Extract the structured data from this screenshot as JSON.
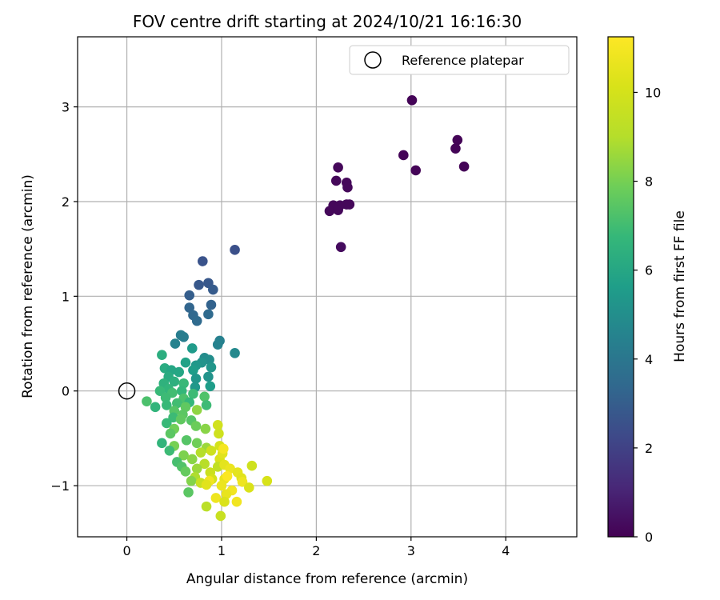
{
  "chart_data": {
    "type": "scatter",
    "title": "FOV centre drift starting at 2024/10/21 16:16:30",
    "xlabel": "Angular distance from reference (arcmin)",
    "ylabel": "Rotation from reference (arcmin)",
    "xlim": [
      -0.52,
      4.75
    ],
    "ylim": [
      -1.54,
      3.74
    ],
    "x_ticks": [
      0,
      1,
      2,
      3,
      4
    ],
    "y_ticks": [
      -1,
      0,
      1,
      2,
      3
    ],
    "x_tick_labels": [
      "0",
      "1",
      "2",
      "3",
      "4"
    ],
    "y_tick_labels": [
      "−1",
      "0",
      "1",
      "2",
      "3"
    ],
    "grid": true,
    "legend": {
      "position": "upper-right",
      "entries": [
        "Reference platepar"
      ]
    },
    "reference_point": {
      "name": "Reference platepar",
      "x": 0,
      "y": 0
    },
    "colorbar": {
      "label": "Hours from first FF file",
      "range": [
        0,
        11.25
      ],
      "ticks": [
        0,
        2,
        4,
        6,
        8,
        10
      ],
      "tick_labels": [
        "0",
        "2",
        "4",
        "6",
        "8",
        "10"
      ],
      "colormap": "viridis"
    },
    "points": [
      [
        3.01,
        3.07,
        0.1
      ],
      [
        3.49,
        2.65,
        0.1
      ],
      [
        3.47,
        2.56,
        0.1
      ],
      [
        2.92,
        2.49,
        0.1
      ],
      [
        3.56,
        2.37,
        0.1
      ],
      [
        3.05,
        2.33,
        0.1
      ],
      [
        2.23,
        2.36,
        0.2
      ],
      [
        2.21,
        2.22,
        0.2
      ],
      [
        2.32,
        2.2,
        0.2
      ],
      [
        2.33,
        2.15,
        0.2
      ],
      [
        2.18,
        1.96,
        0.2
      ],
      [
        2.25,
        1.96,
        0.2
      ],
      [
        2.32,
        1.97,
        0.2
      ],
      [
        2.35,
        1.97,
        0.2
      ],
      [
        2.14,
        1.9,
        0.2
      ],
      [
        2.23,
        1.91,
        0.2
      ],
      [
        2.26,
        1.52,
        0.3
      ],
      [
        1.14,
        1.49,
        2.5
      ],
      [
        0.8,
        1.37,
        2.6
      ],
      [
        0.86,
        1.14,
        2.8
      ],
      [
        0.76,
        1.12,
        2.8
      ],
      [
        0.91,
        1.07,
        2.9
      ],
      [
        0.66,
        1.01,
        3.0
      ],
      [
        0.89,
        0.91,
        3.2
      ],
      [
        0.66,
        0.88,
        3.3
      ],
      [
        0.7,
        0.8,
        3.4
      ],
      [
        0.86,
        0.81,
        3.5
      ],
      [
        0.74,
        0.74,
        3.5
      ],
      [
        0.57,
        0.59,
        4.3
      ],
      [
        0.6,
        0.57,
        4.3
      ],
      [
        0.98,
        0.53,
        4.4
      ],
      [
        0.51,
        0.5,
        4.5
      ],
      [
        0.96,
        0.49,
        4.5
      ],
      [
        0.69,
        0.45,
        5.5
      ],
      [
        1.14,
        0.4,
        4.8
      ],
      [
        0.37,
        0.38,
        6.3
      ],
      [
        0.82,
        0.35,
        4.9
      ],
      [
        0.87,
        0.33,
        5.0
      ],
      [
        0.79,
        0.3,
        5.2
      ],
      [
        0.89,
        0.25,
        5.3
      ],
      [
        0.73,
        0.27,
        5.4
      ],
      [
        0.62,
        0.3,
        5.8
      ],
      [
        0.4,
        0.24,
        6.2
      ],
      [
        0.47,
        0.22,
        6.0
      ],
      [
        0.7,
        0.22,
        5.6
      ],
      [
        0.55,
        0.2,
        6.0
      ],
      [
        0.86,
        0.15,
        5.2
      ],
      [
        0.73,
        0.13,
        5.3
      ],
      [
        0.44,
        0.15,
        6.2
      ],
      [
        0.5,
        0.1,
        6.4
      ],
      [
        0.39,
        0.08,
        6.5
      ],
      [
        0.6,
        0.08,
        6.8
      ],
      [
        0.88,
        0.05,
        5.6
      ],
      [
        0.72,
        0.04,
        5.4
      ],
      [
        0.44,
        0.02,
        6.6
      ],
      [
        0.58,
        0.0,
        6.7
      ],
      [
        0.35,
        0.0,
        6.8
      ],
      [
        0.48,
        -0.02,
        7.0
      ],
      [
        0.7,
        -0.03,
        6.9
      ],
      [
        0.82,
        -0.06,
        7.3
      ],
      [
        0.6,
        -0.08,
        7.2
      ],
      [
        0.41,
        -0.07,
        6.9
      ],
      [
        0.21,
        -0.11,
        7.2
      ],
      [
        0.66,
        -0.12,
        6.7
      ],
      [
        0.53,
        -0.13,
        7.0
      ],
      [
        0.42,
        -0.15,
        6.8
      ],
      [
        0.3,
        -0.17,
        6.6
      ],
      [
        0.84,
        -0.15,
        6.9
      ],
      [
        0.62,
        -0.17,
        7.6
      ],
      [
        0.74,
        -0.2,
        8.4
      ],
      [
        0.5,
        -0.21,
        7.4
      ],
      [
        0.59,
        -0.25,
        7.5
      ],
      [
        0.49,
        -0.28,
        6.9
      ],
      [
        0.68,
        -0.31,
        7.4
      ],
      [
        0.57,
        -0.3,
        7.6
      ],
      [
        0.42,
        -0.34,
        6.8
      ],
      [
        0.96,
        -0.36,
        9.9
      ],
      [
        0.73,
        -0.37,
        7.8
      ],
      [
        0.5,
        -0.4,
        7.9
      ],
      [
        0.83,
        -0.4,
        8.3
      ],
      [
        0.46,
        -0.45,
        7.5
      ],
      [
        0.97,
        -0.45,
        9.8
      ],
      [
        0.37,
        -0.55,
        6.6
      ],
      [
        0.63,
        -0.52,
        7.4
      ],
      [
        0.74,
        -0.55,
        7.9
      ],
      [
        0.5,
        -0.58,
        8.0
      ],
      [
        0.98,
        -0.58,
        10.0
      ],
      [
        0.84,
        -0.6,
        8.6
      ],
      [
        0.45,
        -0.63,
        6.9
      ],
      [
        0.89,
        -0.63,
        9.8
      ],
      [
        0.6,
        -0.68,
        8.1
      ],
      [
        0.69,
        -0.72,
        8.3
      ],
      [
        0.53,
        -0.75,
        7.1
      ],
      [
        0.98,
        -0.72,
        10.2
      ],
      [
        1.01,
        -0.66,
        10.4
      ],
      [
        0.82,
        -0.77,
        9.1
      ],
      [
        0.96,
        -0.8,
        9.4
      ],
      [
        0.74,
        -0.82,
        8.6
      ],
      [
        0.58,
        -0.8,
        7.3
      ],
      [
        1.03,
        -0.78,
        10.5
      ],
      [
        1.09,
        -0.82,
        10.7
      ],
      [
        0.62,
        -0.85,
        7.7
      ],
      [
        0.88,
        -0.86,
        9.7
      ],
      [
        1.32,
        -0.79,
        9.8
      ],
      [
        0.72,
        -0.91,
        8.9
      ],
      [
        0.9,
        -0.93,
        10.0
      ],
      [
        1.17,
        -0.86,
        10.5
      ],
      [
        0.68,
        -0.95,
        8.2
      ],
      [
        0.78,
        -0.97,
        9.6
      ],
      [
        1.03,
        -0.93,
        10.6
      ],
      [
        0.87,
        -0.95,
        10.9
      ],
      [
        1.21,
        -0.92,
        10.4
      ],
      [
        1.48,
        -0.95,
        10.1
      ],
      [
        1.0,
        -1.0,
        10.7
      ],
      [
        1.22,
        -0.96,
        10.8
      ],
      [
        0.84,
        -0.99,
        10.4
      ],
      [
        1.11,
        -1.05,
        10.9
      ],
      [
        1.29,
        -1.02,
        10.2
      ],
      [
        0.65,
        -1.07,
        7.5
      ],
      [
        0.94,
        -1.13,
        10.8
      ],
      [
        1.05,
        -1.09,
        10.6
      ],
      [
        1.16,
        -1.17,
        10.9
      ],
      [
        1.03,
        -1.17,
        10.2
      ],
      [
        0.84,
        -1.22,
        9.2
      ],
      [
        0.99,
        -1.32,
        9.6
      ],
      [
        1.02,
        -0.61,
        11.0
      ],
      [
        1.06,
        -0.9,
        11.2
      ],
      [
        0.78,
        -0.65,
        9.0
      ]
    ]
  }
}
